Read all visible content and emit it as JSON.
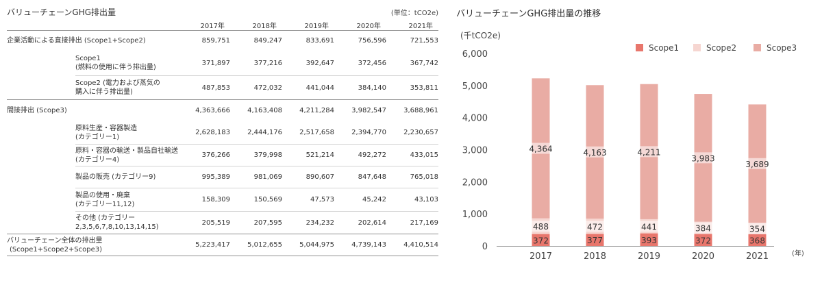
{
  "table": {
    "title": "バリューチェーンGHG排出量",
    "unit": "(単位：tCO2e)",
    "years": [
      "2017年",
      "2018年",
      "2019年",
      "2020年",
      "2021年"
    ],
    "rows": [
      {
        "kind": "major",
        "label": [
          "企業活動による直接排出 (Scope1+Scope2)"
        ],
        "values": [
          "859,751",
          "849,247",
          "833,691",
          "756,596",
          "721,553"
        ],
        "height": 30
      },
      {
        "kind": "sub-first",
        "label": [
          "Scope1",
          "(燃料の使用に伴う排出量)"
        ],
        "values": [
          "371,897",
          "377,216",
          "392,647",
          "372,456",
          "367,742"
        ],
        "height": 36
      },
      {
        "kind": "sub",
        "label": [
          "Scope2 (電力および蒸気の",
          "購入に伴う排出量)"
        ],
        "values": [
          "487,853",
          "472,032",
          "441,044",
          "384,140",
          "353,811"
        ],
        "height": 35
      },
      {
        "kind": "major",
        "label": [
          "間接排出 (Scope3)"
        ],
        "values": [
          "4,363,666",
          "4,163,408",
          "4,211,284",
          "3,982,547",
          "3,688,961"
        ],
        "height": 32
      },
      {
        "kind": "sub-first",
        "label": [
          "原料生産・容器製造",
          "(カテゴリー1)"
        ],
        "values": [
          "2,628,183",
          "2,444,176",
          "2,517,658",
          "2,394,770",
          "2,230,657"
        ],
        "height": 33
      },
      {
        "kind": "sub",
        "label": [
          "原料・容器の輸送・製品自社輸送",
          "(カテゴリー4)"
        ],
        "values": [
          "376,266",
          "379,998",
          "521,214",
          "492,272",
          "433,015"
        ],
        "height": 32
      },
      {
        "kind": "sub",
        "label": [
          "製品の販売 (カテゴリー9)"
        ],
        "values": [
          "995,389",
          "981,069",
          "890,607",
          "847,648",
          "765,018"
        ],
        "height": 32
      },
      {
        "kind": "sub",
        "label": [
          "製品の使用・廃棄",
          "(カテゴリー11,12)"
        ],
        "values": [
          "158,309",
          "150,569",
          "47,573",
          "45,242",
          "43,103"
        ],
        "height": 34
      },
      {
        "kind": "sub",
        "label": [
          "その他 (カテゴリー",
          "2,3,5,6,7,8,10,13,14,15)"
        ],
        "values": [
          "205,519",
          "207,595",
          "234,232",
          "202,614",
          "217,169"
        ],
        "height": 33
      },
      {
        "kind": "major-last",
        "label": [
          "バリューチェーン全体の排出量",
          "(Scope1+Scope2+Scope3)"
        ],
        "values": [
          "5,223,417",
          "5,012,655",
          "5,044,975",
          "4,739,143",
          "4,410,514"
        ],
        "height": 32
      }
    ]
  },
  "chart_data": {
    "type": "bar",
    "stacked": true,
    "title": "バリューチェーンGHG排出量の推移",
    "ylabel": "(千tCO2e)",
    "xlabel_unit": "(年)",
    "categories": [
      "2017",
      "2018",
      "2019",
      "2020",
      "2021"
    ],
    "ylim": [
      0,
      6000
    ],
    "yticks": [
      "0",
      "1,000",
      "2,000",
      "3,000",
      "4,000",
      "5,000",
      "6,000"
    ],
    "grid": false,
    "legend_position": "top-right",
    "series": [
      {
        "name": "Scope1",
        "values": [
          372,
          377,
          393,
          372,
          368
        ],
        "labels": [
          "372",
          "377",
          "393",
          "372",
          "368"
        ],
        "color": "#e8766c"
      },
      {
        "name": "Scope2",
        "values": [
          488,
          472,
          441,
          384,
          354
        ],
        "labels": [
          "488",
          "472",
          "441",
          "384",
          "354"
        ],
        "color": "#f6d6d1"
      },
      {
        "name": "Scope3",
        "values": [
          4364,
          4163,
          4211,
          3983,
          3689
        ],
        "labels": [
          "4,364",
          "4,163",
          "4,211",
          "3,983",
          "3,689"
        ],
        "color": "#e9aca4"
      }
    ]
  }
}
